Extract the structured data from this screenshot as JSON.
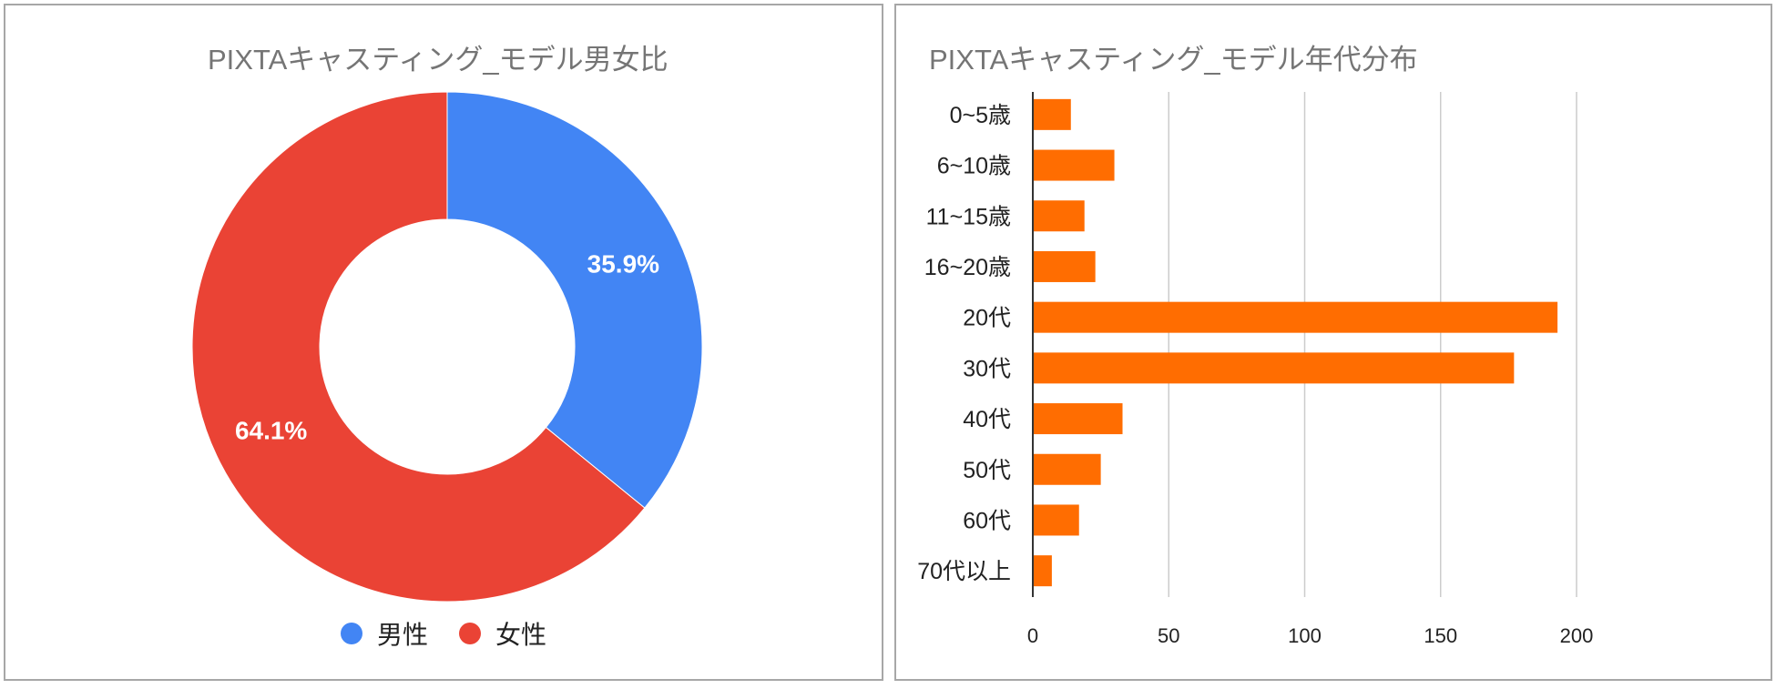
{
  "chart_data": [
    {
      "type": "pie",
      "title": "PIXTAキャスティング_モデル男女比",
      "donut": true,
      "categories": [
        "男性",
        "女性"
      ],
      "values": [
        35.9,
        64.1
      ],
      "labels": [
        "35.9%",
        "64.1%"
      ],
      "colors": [
        "#4285f4",
        "#ea4335"
      ],
      "legend": "bottom"
    },
    {
      "type": "bar",
      "orientation": "horizontal",
      "title": "PIXTAキャスティング_モデル年代分布",
      "categories": [
        "0~5歳",
        "6~10歳",
        "11~15歳",
        "16~20歳",
        "20代",
        "30代",
        "40代",
        "50代",
        "60代",
        "70代以上"
      ],
      "values": [
        14,
        30,
        19,
        23,
        193,
        177,
        33,
        25,
        17,
        7
      ],
      "xlim": [
        0,
        200
      ],
      "xticks": [
        0,
        50,
        100,
        150,
        200
      ],
      "color": "#ff6d01",
      "grid": true
    }
  ]
}
